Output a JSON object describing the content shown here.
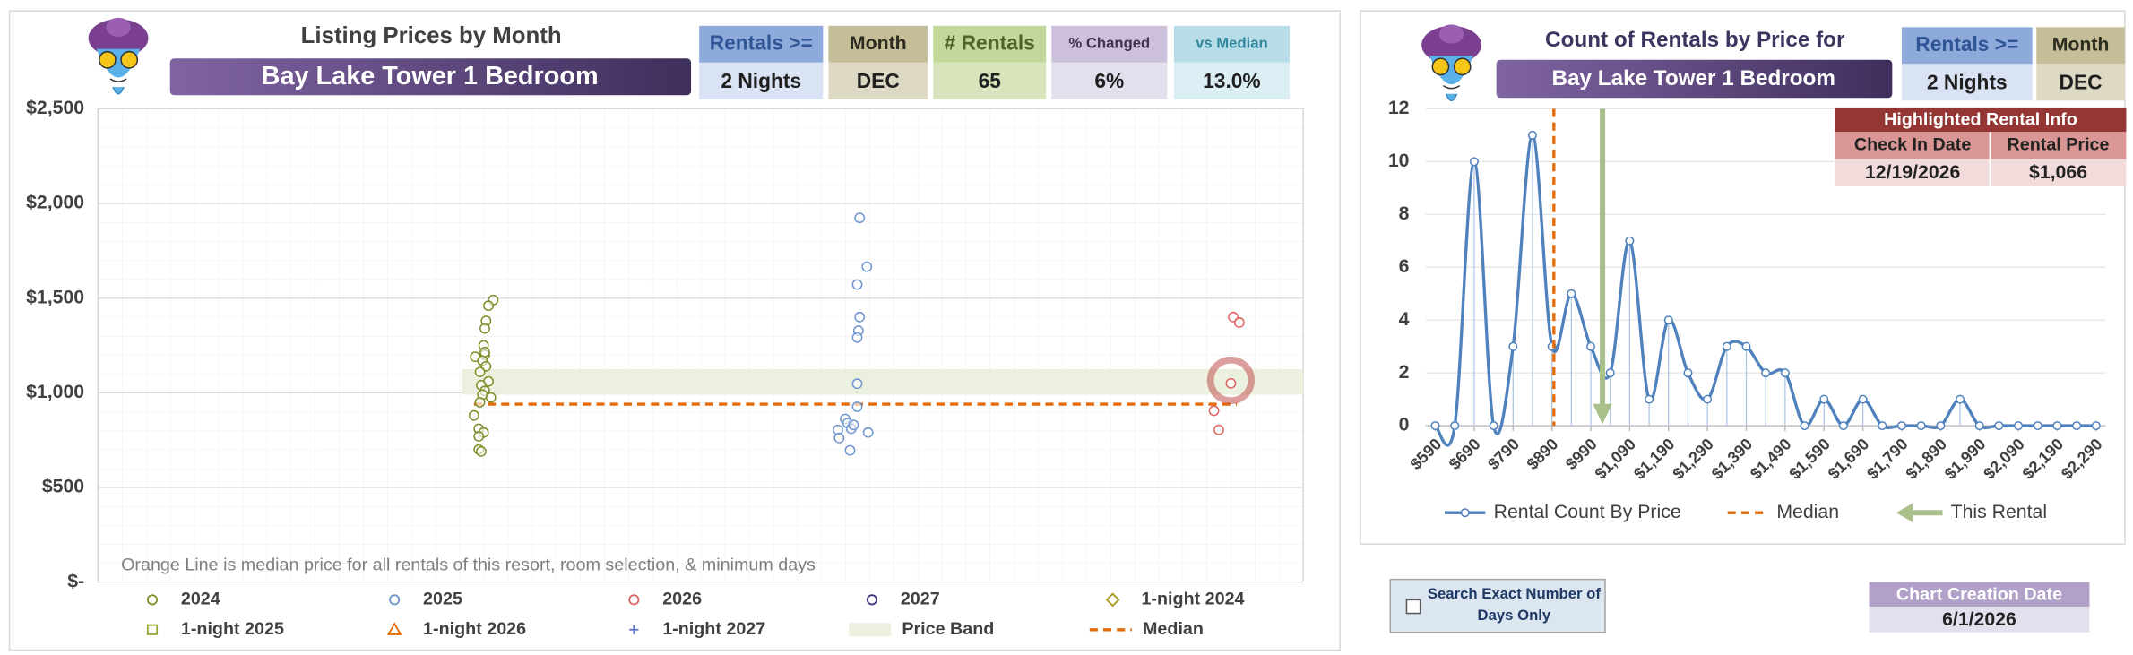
{
  "left_panel": {
    "summary": [
      {
        "label": "Rentals >=",
        "value": "2 Nights"
      },
      {
        "label": "Month",
        "value": "DEC"
      },
      {
        "label": "# Rentals",
        "value": "65"
      },
      {
        "label": "% Changed",
        "value": "6%"
      },
      {
        "label": "vs Median",
        "value": "13.0%"
      }
    ]
  },
  "right_panel": {
    "summary": [
      {
        "label": "Rentals >=",
        "value": "2 Nights"
      },
      {
        "label": "Month",
        "value": "DEC"
      }
    ],
    "highlighted_rental": {
      "title": "Highlighted Rental Info",
      "columns": [
        "Check In Date",
        "Rental Price"
      ],
      "row": [
        "12/19/2026",
        "$1,066"
      ]
    }
  },
  "controls": {
    "checkbox_label": "Search Exact Number of Days Only",
    "checked": false
  },
  "creation": {
    "label": "Chart Creation Date",
    "value": "6/1/2026"
  },
  "chart_data": [
    {
      "type": "scatter",
      "title": "Listing Prices by Month",
      "subtitle": "Bay Lake Tower 1 Bedroom",
      "annotation": "Orange Line is median price for all rentals of this resort, room selection, & minimum days",
      "xlim": [
        0,
        100
      ],
      "ylim": [
        0,
        2500
      ],
      "yticks": [
        {
          "value": 0,
          "label": "$-"
        },
        {
          "value": 500,
          "label": "$500"
        },
        {
          "value": 1000,
          "label": "$1,000"
        },
        {
          "value": 1500,
          "label": "$1,500"
        },
        {
          "value": 2000,
          "label": "$2,000"
        },
        {
          "value": 2500,
          "label": "$2,500"
        }
      ],
      "grid": true,
      "series": [
        {
          "name": "2024",
          "type": "scatter",
          "marker": "circle",
          "color": "#7f8f2a",
          "x": [
            31.3,
            32.1,
            32.8,
            32.4,
            32.2,
            32.1,
            32.0,
            32.1,
            31.9,
            32.2,
            31.7,
            32.4,
            31.8,
            32.1,
            32.6,
            31.9,
            31.7,
            31.2,
            31.6,
            32.0,
            31.6,
            31.6,
            31.8
          ],
          "values": [
            1190,
            1200,
            1490,
            1460,
            1380,
            1340,
            1250,
            1215,
            1170,
            1140,
            1110,
            1060,
            1040,
            1010,
            975,
            990,
            950,
            880,
            810,
            790,
            770,
            700,
            690
          ]
        },
        {
          "name": "2025",
          "type": "scatter",
          "marker": "circle",
          "color": "#6f96d0",
          "x": [
            63.2,
            63.8,
            63.0,
            63.2,
            63.1,
            63.0,
            63.0,
            63.0,
            61.4,
            62.0,
            62.2,
            62.5,
            61.5,
            63.9,
            62.7,
            62.4
          ],
          "values": [
            1924,
            1666,
            1572,
            1400,
            1328,
            1292,
            1048,
            926,
            804,
            862,
            840,
            810,
            761,
            790,
            830,
            696
          ]
        },
        {
          "name": "2026",
          "type": "scatter",
          "marker": "circle",
          "color": "#e06666",
          "x": [
            94.2,
            94.7,
            94.0,
            92.6,
            93.0
          ],
          "values": [
            1400,
            1371,
            1050,
            905,
            804
          ]
        },
        {
          "name": "2027",
          "type": "scatter",
          "marker": "circle",
          "color": "#403580",
          "x": [],
          "values": []
        },
        {
          "name": "1-night 2024",
          "type": "scatter",
          "marker": "diamond",
          "color": "#a89a20",
          "x": [],
          "values": []
        },
        {
          "name": "1-night 2025",
          "type": "scatter",
          "marker": "square",
          "color": "#9aab3a",
          "x": [],
          "values": []
        },
        {
          "name": "1-night 2026",
          "type": "scatter",
          "marker": "triangle",
          "color": "#e46c0a",
          "x": [],
          "values": []
        },
        {
          "name": "1-night 2027",
          "type": "scatter",
          "marker": "plus",
          "color": "#5a6fbf",
          "x": [],
          "values": []
        },
        {
          "name": "Price Band",
          "type": "band",
          "color": "#ebf1de",
          "x": [
            30.2,
            100
          ],
          "low": 990,
          "high": 1125
        },
        {
          "name": "Median",
          "type": "line",
          "color": "#e46c0a",
          "x": [
            31.2,
            94.5
          ],
          "values": [
            940,
            940
          ]
        }
      ],
      "highlight": {
        "x": 94.0,
        "value": 1066,
        "color": "#c0504d"
      }
    },
    {
      "type": "line",
      "title": "Count of Rentals by Price for",
      "subtitle": "Bay Lake Tower 1 Bedroom",
      "x": [
        590,
        640,
        690,
        740,
        790,
        840,
        890,
        940,
        990,
        1040,
        1090,
        1140,
        1190,
        1240,
        1290,
        1340,
        1390,
        1440,
        1490,
        1540,
        1590,
        1640,
        1690,
        1740,
        1790,
        1840,
        1890,
        1940,
        1990,
        2040,
        2090,
        2140,
        2190,
        2240,
        2290
      ],
      "xlim": [
        565,
        2315
      ],
      "xticks": [
        {
          "value": 590,
          "label": "$590"
        },
        {
          "value": 690,
          "label": "$690"
        },
        {
          "value": 790,
          "label": "$790"
        },
        {
          "value": 890,
          "label": "$890"
        },
        {
          "value": 990,
          "label": "$990"
        },
        {
          "value": 1090,
          "label": "$1,090"
        },
        {
          "value": 1190,
          "label": "$1,190"
        },
        {
          "value": 1290,
          "label": "$1,290"
        },
        {
          "value": 1390,
          "label": "$1,390"
        },
        {
          "value": 1490,
          "label": "$1,490"
        },
        {
          "value": 1590,
          "label": "$1,590"
        },
        {
          "value": 1690,
          "label": "$1,690"
        },
        {
          "value": 1790,
          "label": "$1,790"
        },
        {
          "value": 1890,
          "label": "$1,890"
        },
        {
          "value": 1990,
          "label": "$1,990"
        },
        {
          "value": 2090,
          "label": "$2,090"
        },
        {
          "value": 2190,
          "label": "$2,190"
        },
        {
          "value": 2290,
          "label": "$2,290"
        }
      ],
      "ylim": [
        0,
        12
      ],
      "yticks": [
        0,
        2,
        4,
        6,
        8,
        10,
        12
      ],
      "grid": true,
      "series": [
        {
          "name": "Rental Count By Price",
          "color": "#4f81bd",
          "values": [
            0,
            0,
            10,
            0,
            3,
            11,
            3,
            5,
            3,
            2,
            7,
            1,
            4,
            2,
            1,
            3,
            3,
            2,
            2,
            0,
            1,
            0,
            1,
            0,
            0,
            0,
            0,
            1,
            0,
            0,
            0,
            0,
            0,
            0,
            0
          ]
        }
      ],
      "markers": [
        {
          "name": "Median",
          "x": 895,
          "color": "#e46c0a",
          "style": "dashed"
        },
        {
          "name": "This Rental",
          "x": 1020,
          "color": "#a9c08a",
          "style": "arrow"
        }
      ]
    }
  ]
}
